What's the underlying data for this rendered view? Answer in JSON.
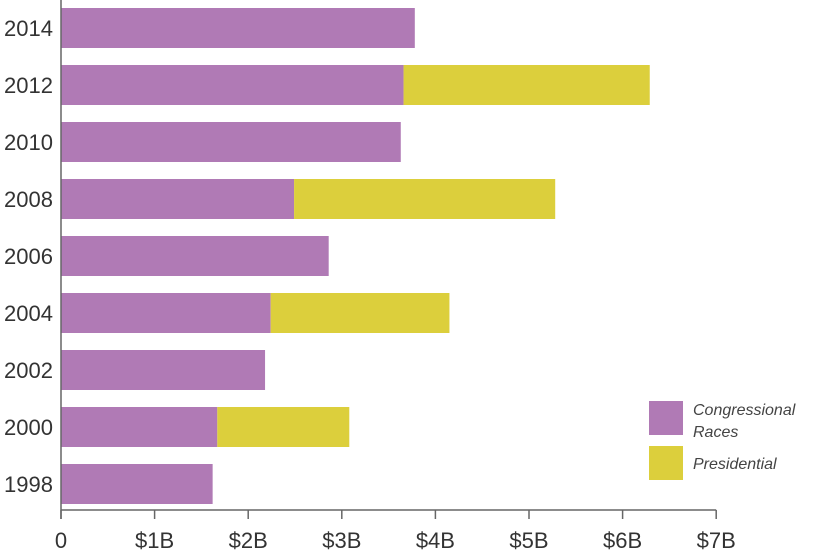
{
  "chart_data": {
    "type": "bar",
    "orientation": "horizontal",
    "stacked": true,
    "title": "",
    "xlabel": "",
    "ylabel": "",
    "categories": [
      "2014",
      "2012",
      "2010",
      "2008",
      "2006",
      "2004",
      "2002",
      "2000",
      "1998"
    ],
    "series": [
      {
        "name": "Congressional Races",
        "legend_lines": [
          "Congressional",
          "Races"
        ],
        "color": "#b07ab5",
        "values": [
          3.78,
          3.66,
          3.63,
          2.49,
          2.86,
          2.24,
          2.18,
          1.67,
          1.62
        ]
      },
      {
        "name": "Presidential",
        "legend_lines": [
          "Presidential"
        ],
        "color": "#dccf3c",
        "values": [
          0,
          2.63,
          0,
          2.79,
          0,
          1.91,
          0,
          1.41,
          0
        ]
      }
    ],
    "xlim": [
      0,
      7
    ],
    "xticks": [
      0,
      1,
      2,
      3,
      4,
      5,
      6,
      7
    ],
    "xtick_labels": [
      "0",
      "$1B",
      "$2B",
      "$3B",
      "$4B",
      "$5B",
      "$6B",
      "$7B"
    ],
    "grid": false,
    "legend_position": "bottom-right"
  }
}
